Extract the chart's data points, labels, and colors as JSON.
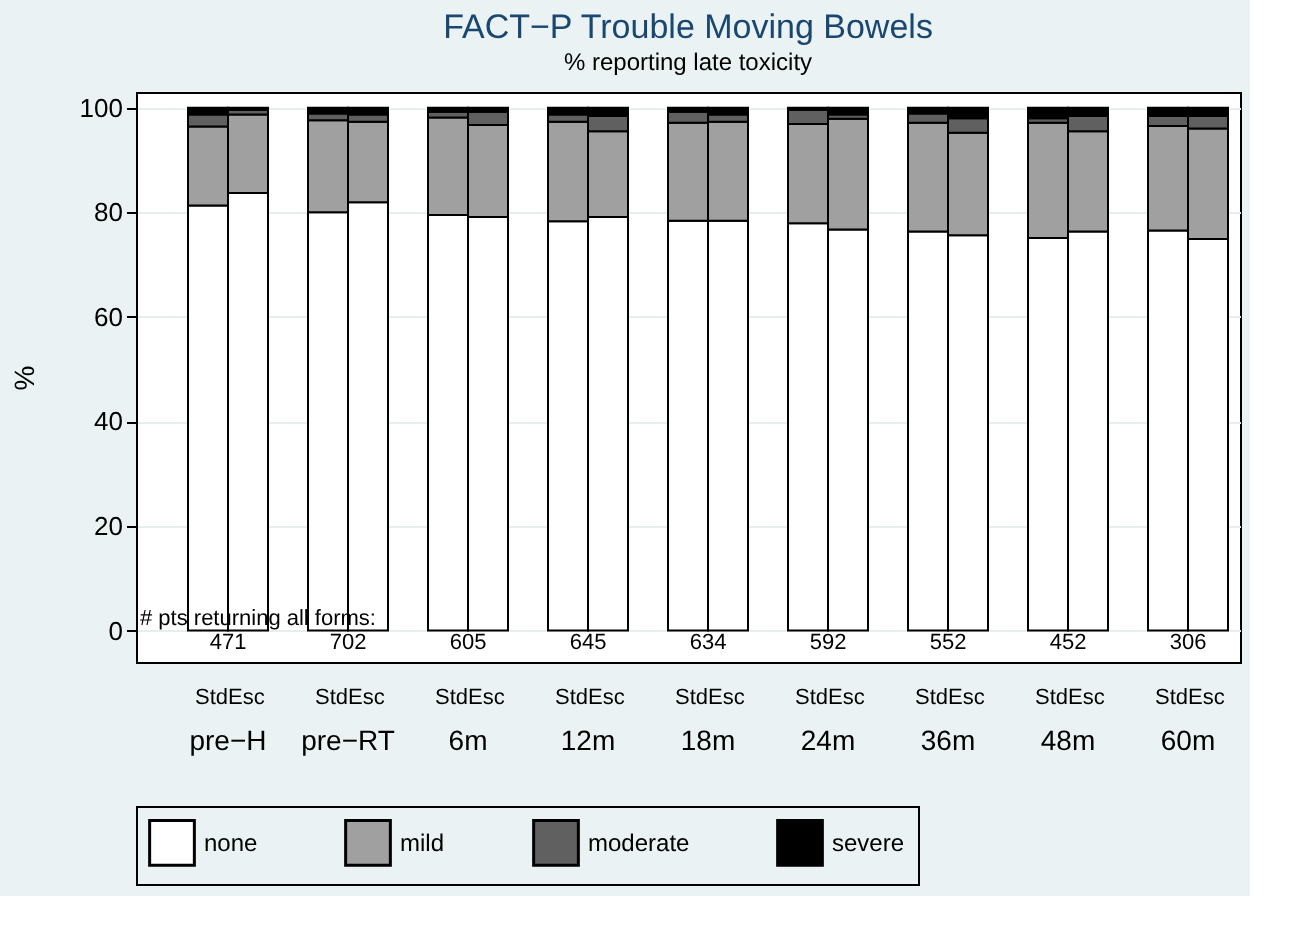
{
  "chart_data": {
    "type": "bar",
    "title": "FACT−P Trouble Moving Bowels",
    "subtitle": "% reporting late toxicity",
    "ylabel": "%",
    "categories": [
      "Std",
      "Esc",
      "Std",
      "Esc",
      "Std",
      "Esc",
      "Std",
      "Esc",
      "Std",
      "Esc",
      "Std",
      "Esc",
      "Std",
      "Esc",
      "Std",
      "Esc",
      "Std",
      "Esc"
    ],
    "stacked": true,
    "series": [
      {
        "name": "none",
        "color": "#ffffff",
        "values": [
          81.3,
          83.7,
          80.0,
          81.9,
          79.5,
          79.1,
          78.3,
          79.1,
          78.4,
          78.4,
          77.9,
          76.7,
          76.3,
          75.6,
          75.1,
          76.3,
          76.5,
          74.9
        ]
      },
      {
        "name": "mild",
        "color": "#a0a0a0",
        "values": [
          15.1,
          15.0,
          17.6,
          15.4,
          18.6,
          17.6,
          19.0,
          16.4,
          18.7,
          18.9,
          19.0,
          21.2,
          20.8,
          19.6,
          22.0,
          19.2,
          20.0,
          21.1
        ]
      },
      {
        "name": "moderate",
        "color": "#606060",
        "values": [
          2.3,
          0.9,
          1.3,
          1.4,
          1.1,
          2.5,
          1.4,
          2.9,
          2.1,
          1.4,
          2.7,
          0.8,
          1.8,
          2.8,
          0.9,
          2.9,
          1.9,
          2.4
        ]
      },
      {
        "name": "severe",
        "color": "#000000",
        "values": [
          1.3,
          0.4,
          1.1,
          1.3,
          0.8,
          0.8,
          1.3,
          1.6,
          0.8,
          1.3,
          0.4,
          1.3,
          1.1,
          2.0,
          2.0,
          1.6,
          1.6,
          1.6
        ]
      }
    ],
    "annotations": [
      "# pts returning all forms:",
      "471",
      "702",
      "605",
      "645",
      "634",
      "592",
      "552",
      "452",
      "306",
      "pre−H",
      "pre−RT",
      "6m",
      "12m",
      "18m",
      "24m",
      "36m",
      "48m",
      "60m"
    ],
    "ylim": [
      -6,
      103
    ],
    "yticks": [
      0,
      20,
      40,
      60,
      80,
      100
    ],
    "grid": "y",
    "legend": "bottom"
  }
}
